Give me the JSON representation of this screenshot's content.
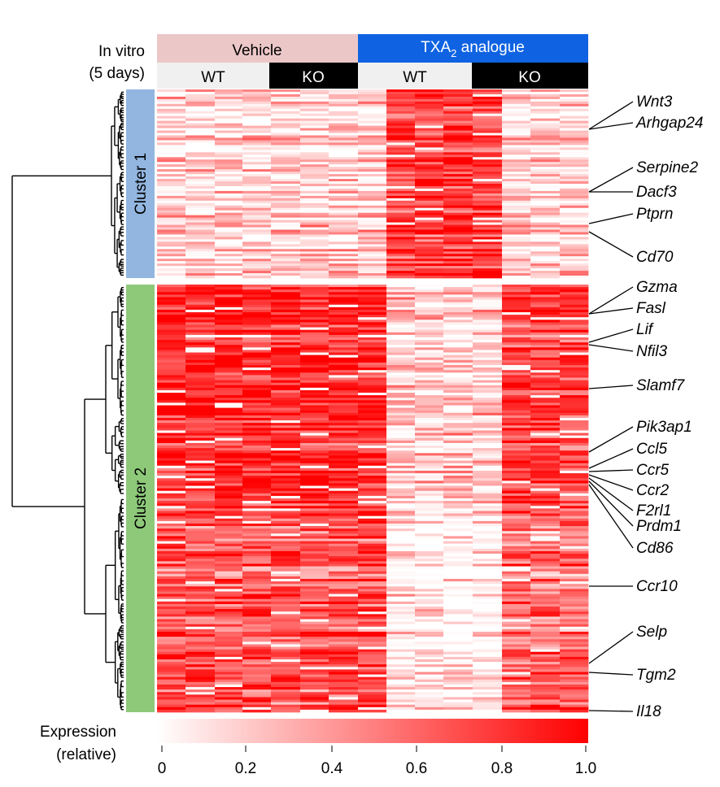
{
  "chart_data": {
    "type": "heatmap",
    "condition_label": [
      "In vitro",
      "(5 days)"
    ],
    "treatments": [
      {
        "label": "Vehicle",
        "color": "#ecc7c7",
        "genotypes": [
          "WT",
          "KO"
        ]
      },
      {
        "label": "TXA",
        "sub": "2",
        "suffix": " analogue",
        "color": "#0f63e2",
        "genotypes": [
          "WT",
          "KO"
        ]
      }
    ],
    "genotype_colors": {
      "WT": "#f0f0f0",
      "KO": "#000000"
    },
    "samples_per_group": 4,
    "clusters": [
      {
        "label": "Cluster 1",
        "color": "#92b6e0",
        "group_means": [
          0.2,
          0.2,
          0.8,
          0.2
        ],
        "genes": [
          "Wnt3",
          "Arhgap24",
          "Serpine2",
          "Dacf3",
          "Ptprn",
          "Cd70"
        ]
      },
      {
        "label": "Cluster 2",
        "color": "#8ec97a",
        "group_means": [
          0.85,
          0.85,
          0.2,
          0.75
        ],
        "genes": [
          "Gzma",
          "Fasl",
          "Lif",
          "Nfil3",
          "Slamf7",
          "Pik3ap1",
          "Ccl5",
          "Ccr5",
          "Ccr2",
          "F2rl1",
          "Prdm1",
          "Cd86",
          "Ccr10",
          "Selp",
          "Tgm2",
          "Il18"
        ]
      }
    ],
    "colorbar": {
      "label": [
        "Expression",
        "(relative)"
      ],
      "range": [
        0,
        1.0
      ],
      "ticks": [
        "0",
        "0.2",
        "0.4",
        "0.6",
        "0.8",
        "1.0"
      ],
      "low_color": "#ffffff",
      "high_color": "#ff0000"
    }
  }
}
